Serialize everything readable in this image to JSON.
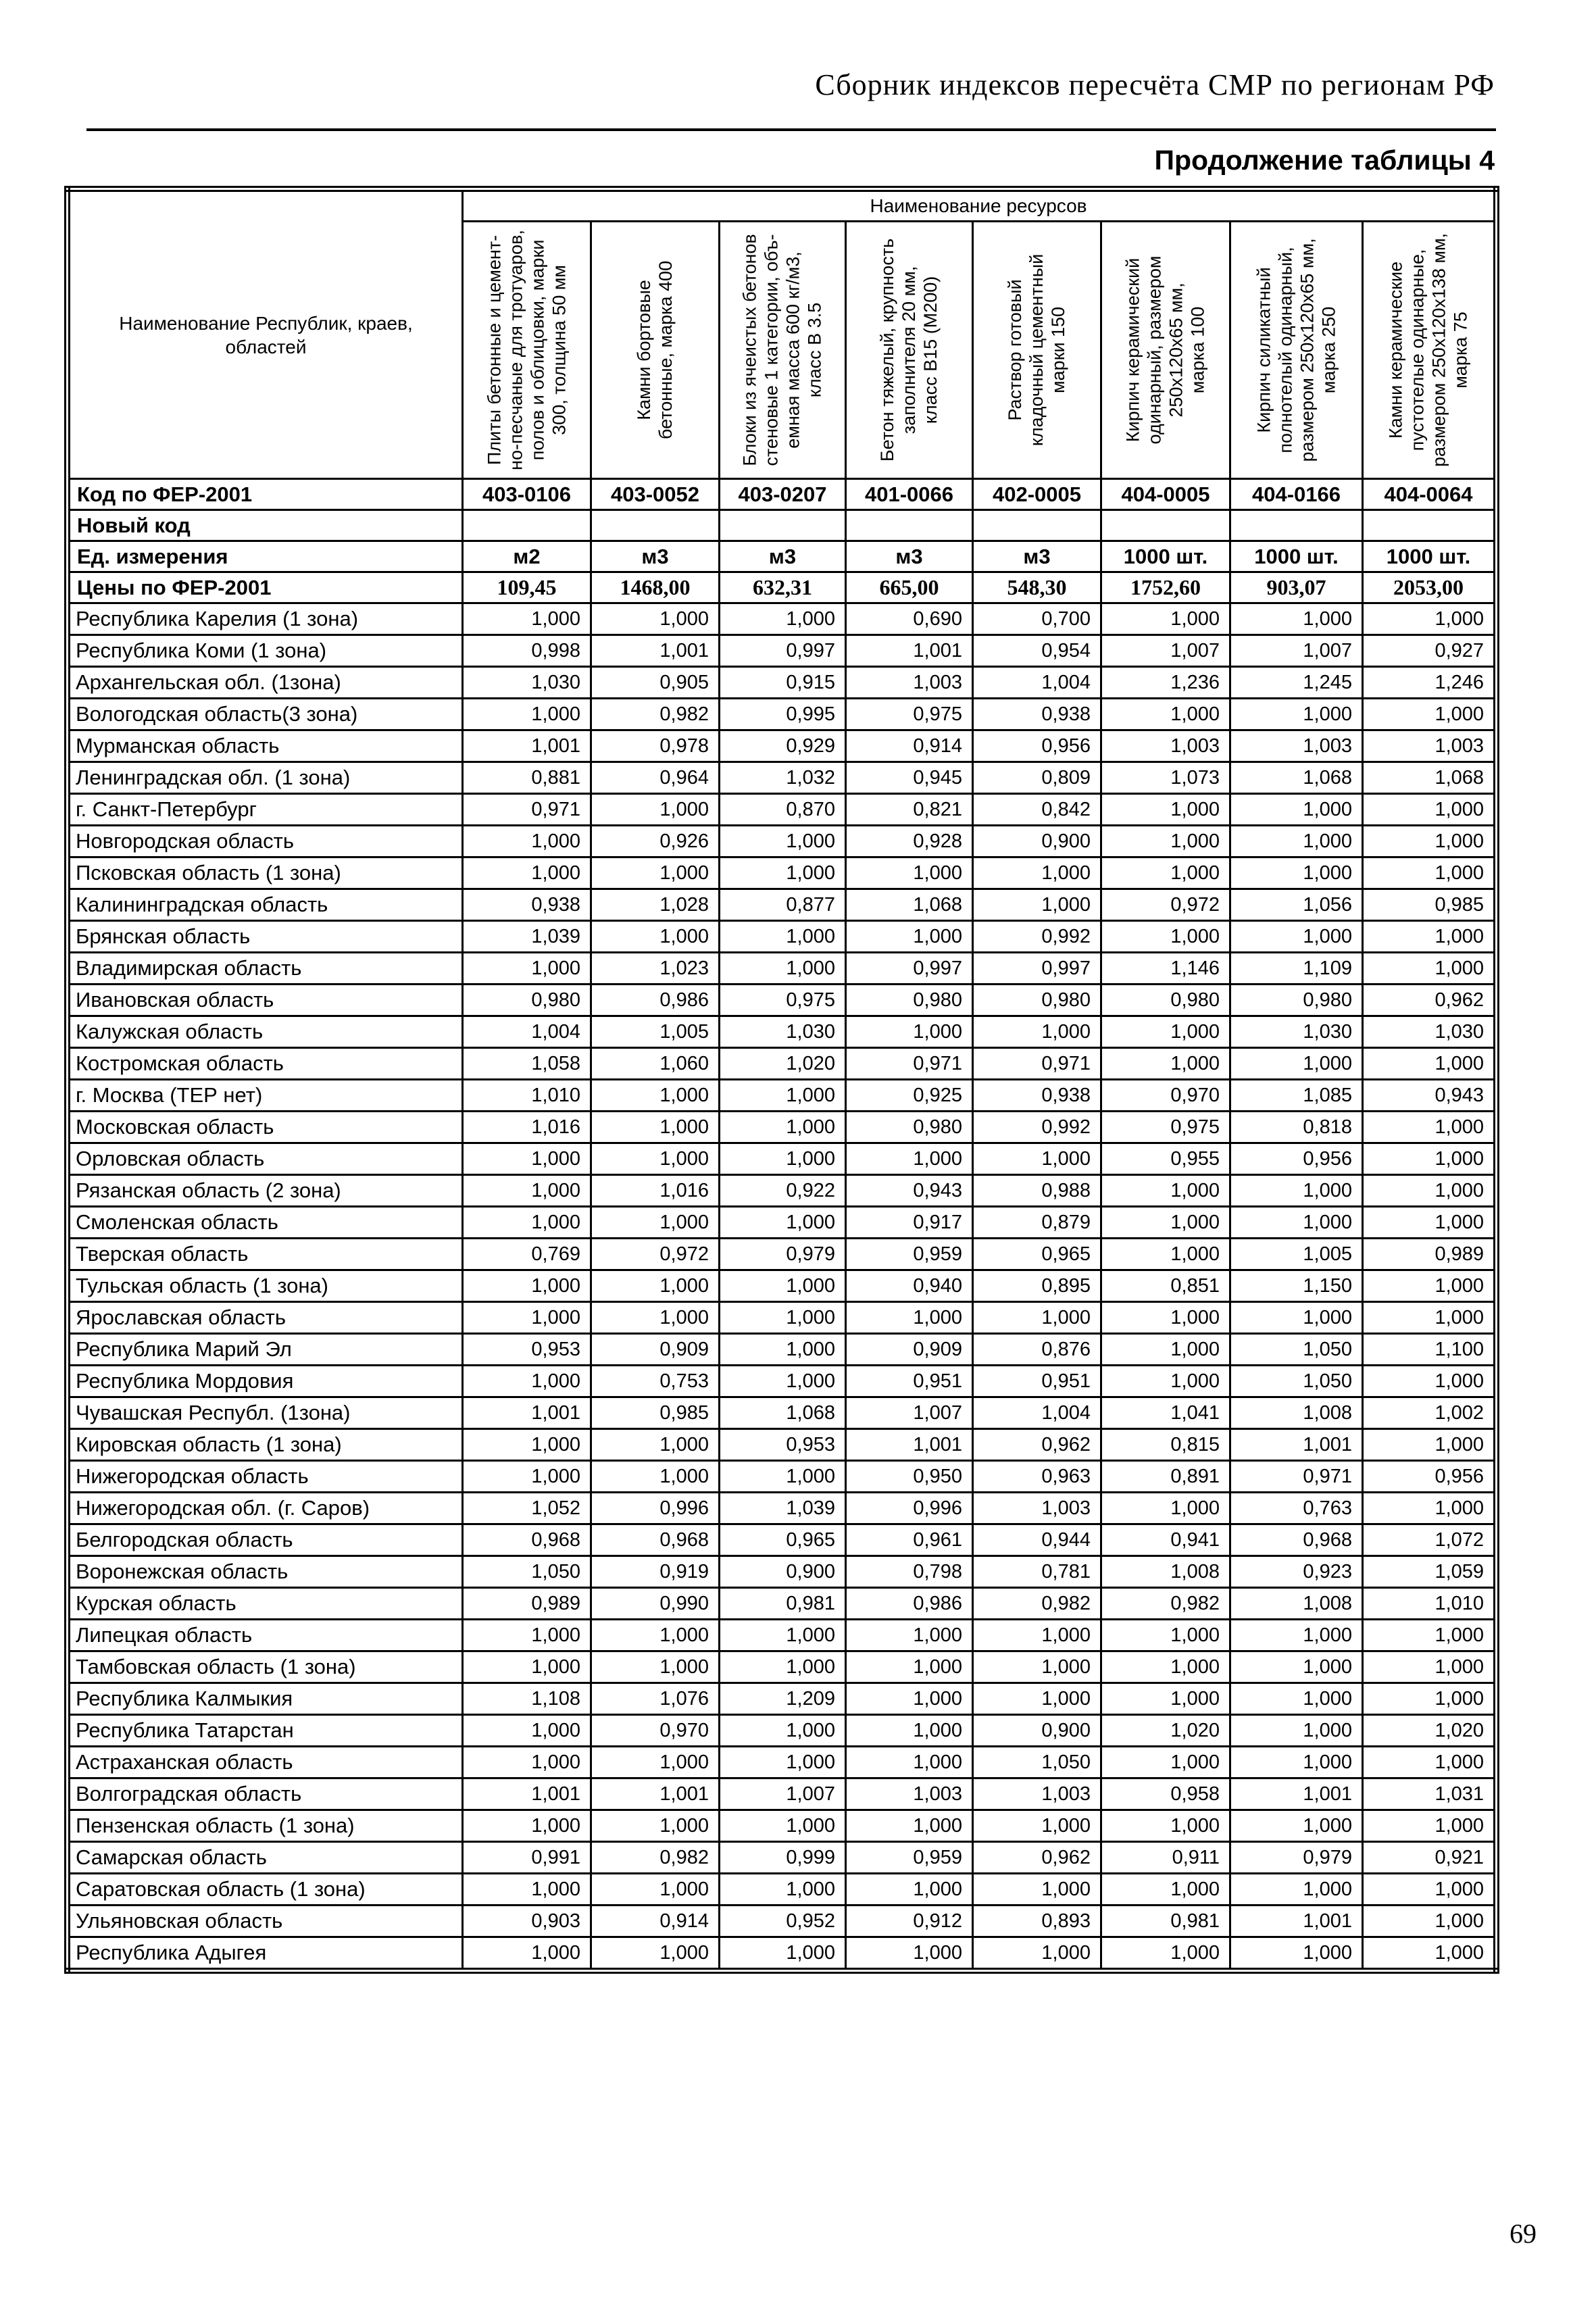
{
  "page": {
    "header_title": "Сборник индексов пересчёта СМР  по регионам РФ",
    "continuation_label": "Продолжение таблицы 4",
    "page_number": "69"
  },
  "table": {
    "corner_header": "Наименование Республик, краев,\nобластей",
    "resources_header": "Наименование ресурсов",
    "columns": [
      "Плиты бетонные и цемент-\nно-песчаные для тротуаров,\nполов и облицовки, марки\n300, толщина 50 мм",
      "Камни бортовые\nбетонные, марка 400",
      "Блоки из ячеистых бетонов\nстеновые 1 категории, объ-\nемная масса 600 кг/м3,\nкласс В 3.5",
      "Бетон тяжелый, крупность\nзаполнителя 20 мм,\nкласс В15 (М200)",
      "Раствор готовый\nкладочный цементный\nмарки 150",
      "Кирпич керамический\nодинарный, размером\n250х120х65 мм,\nмарка 100",
      "Кирпич силикатный\nполнотелый одинарный,\nразмером 250х120х65 мм,\nмарка 250",
      "Камни керамические\nпустотелые одинарные,\nразмером 250х120х138 мм,\nмарка 75"
    ],
    "meta_rows": [
      {
        "label": "Код по ФЕР-2001",
        "values": [
          "403-0106",
          "403-0052",
          "403-0207",
          "401-0066",
          "402-0005",
          "404-0005",
          "404-0166",
          "404-0064"
        ]
      },
      {
        "label": "Новый код",
        "values": [
          "",
          "",
          "",
          "",
          "",
          "",
          "",
          ""
        ]
      },
      {
        "label": "Ед. измерения",
        "values": [
          "м2",
          "м3",
          "м3",
          "м3",
          "м3",
          "1000 шт.",
          "1000 шт.",
          "1000 шт."
        ]
      },
      {
        "label": "Цены по ФЕР-2001",
        "values": [
          "109,45",
          "1468,00",
          "632,31",
          "665,00",
          "548,30",
          "1752,60",
          "903,07",
          "2053,00"
        ]
      }
    ],
    "rows": [
      {
        "name": "Республика Карелия (1 зона)",
        "values": [
          "1,000",
          "1,000",
          "1,000",
          "0,690",
          "0,700",
          "1,000",
          "1,000",
          "1,000"
        ]
      },
      {
        "name": "Республика Коми (1 зона)",
        "values": [
          "0,998",
          "1,001",
          "0,997",
          "1,001",
          "0,954",
          "1,007",
          "1,007",
          "0,927"
        ]
      },
      {
        "name": "Архангельская обл. (1зона)",
        "values": [
          "1,030",
          "0,905",
          "0,915",
          "1,003",
          "1,004",
          "1,236",
          "1,245",
          "1,246"
        ]
      },
      {
        "name": "Вологодская область(3 зона)",
        "values": [
          "1,000",
          "0,982",
          "0,995",
          "0,975",
          "0,938",
          "1,000",
          "1,000",
          "1,000"
        ]
      },
      {
        "name": "Мурманская область",
        "values": [
          "1,001",
          "0,978",
          "0,929",
          "0,914",
          "0,956",
          "1,003",
          "1,003",
          "1,003"
        ]
      },
      {
        "name": "Ленинградская обл. (1 зона)",
        "values": [
          "0,881",
          "0,964",
          "1,032",
          "0,945",
          "0,809",
          "1,073",
          "1,068",
          "1,068"
        ]
      },
      {
        "name": "г. Санкт-Петербург",
        "values": [
          "0,971",
          "1,000",
          "0,870",
          "0,821",
          "0,842",
          "1,000",
          "1,000",
          "1,000"
        ]
      },
      {
        "name": "Новгородская область",
        "values": [
          "1,000",
          "0,926",
          "1,000",
          "0,928",
          "0,900",
          "1,000",
          "1,000",
          "1,000"
        ]
      },
      {
        "name": "Псковская область (1 зона)",
        "values": [
          "1,000",
          "1,000",
          "1,000",
          "1,000",
          "1,000",
          "1,000",
          "1,000",
          "1,000"
        ]
      },
      {
        "name": "Калининградская область",
        "values": [
          "0,938",
          "1,028",
          "0,877",
          "1,068",
          "1,000",
          "0,972",
          "1,056",
          "0,985"
        ]
      },
      {
        "name": "Брянская область",
        "values": [
          "1,039",
          "1,000",
          "1,000",
          "1,000",
          "0,992",
          "1,000",
          "1,000",
          "1,000"
        ]
      },
      {
        "name": "Владимирская область",
        "values": [
          "1,000",
          "1,023",
          "1,000",
          "0,997",
          "0,997",
          "1,146",
          "1,109",
          "1,000"
        ]
      },
      {
        "name": "Ивановская область",
        "values": [
          "0,980",
          "0,986",
          "0,975",
          "0,980",
          "0,980",
          "0,980",
          "0,980",
          "0,962"
        ]
      },
      {
        "name": "Калужская область",
        "values": [
          "1,004",
          "1,005",
          "1,030",
          "1,000",
          "1,000",
          "1,000",
          "1,030",
          "1,030"
        ]
      },
      {
        "name": "Костромская область",
        "values": [
          "1,058",
          "1,060",
          "1,020",
          "0,971",
          "0,971",
          "1,000",
          "1,000",
          "1,000"
        ]
      },
      {
        "name": "г. Москва (ТЕР нет)",
        "values": [
          "1,010",
          "1,000",
          "1,000",
          "0,925",
          "0,938",
          "0,970",
          "1,085",
          "0,943"
        ]
      },
      {
        "name": "Московская  область",
        "values": [
          "1,016",
          "1,000",
          "1,000",
          "0,980",
          "0,992",
          "0,975",
          "0,818",
          "1,000"
        ]
      },
      {
        "name": "Орловская область",
        "values": [
          "1,000",
          "1,000",
          "1,000",
          "1,000",
          "1,000",
          "0,955",
          "0,956",
          "1,000"
        ]
      },
      {
        "name": "Рязанская область (2 зона)",
        "values": [
          "1,000",
          "1,016",
          "0,922",
          "0,943",
          "0,988",
          "1,000",
          "1,000",
          "1,000"
        ]
      },
      {
        "name": "Смоленская область",
        "values": [
          "1,000",
          "1,000",
          "1,000",
          "0,917",
          "0,879",
          "1,000",
          "1,000",
          "1,000"
        ]
      },
      {
        "name": "Тверская область",
        "values": [
          "0,769",
          "0,972",
          "0,979",
          "0,959",
          "0,965",
          "1,000",
          "1,005",
          "0,989"
        ]
      },
      {
        "name": "Тульская область (1 зона)",
        "values": [
          "1,000",
          "1,000",
          "1,000",
          "0,940",
          "0,895",
          "0,851",
          "1,150",
          "1,000"
        ]
      },
      {
        "name": "Ярославская область",
        "values": [
          "1,000",
          "1,000",
          "1,000",
          "1,000",
          "1,000",
          "1,000",
          "1,000",
          "1,000"
        ]
      },
      {
        "name": "Республика Марий Эл",
        "values": [
          "0,953",
          "0,909",
          "1,000",
          "0,909",
          "0,876",
          "1,000",
          "1,050",
          "1,100"
        ]
      },
      {
        "name": "Республика Мордовия",
        "values": [
          "1,000",
          "0,753",
          "1,000",
          "0,951",
          "0,951",
          "1,000",
          "1,050",
          "1,000"
        ]
      },
      {
        "name": "Чувашская Республ. (1зона)",
        "values": [
          "1,001",
          "0,985",
          "1,068",
          "1,007",
          "1,004",
          "1,041",
          "1,008",
          "1,002"
        ]
      },
      {
        "name": "Кировская область (1 зона)",
        "values": [
          "1,000",
          "1,000",
          "0,953",
          "1,001",
          "0,962",
          "0,815",
          "1,001",
          "1,000"
        ]
      },
      {
        "name": "Нижегородская область",
        "values": [
          "1,000",
          "1,000",
          "1,000",
          "0,950",
          "0,963",
          "0,891",
          "0,971",
          "0,956"
        ]
      },
      {
        "name": "Нижегородская обл. (г. Саров)",
        "values": [
          "1,052",
          "0,996",
          "1,039",
          "0,996",
          "1,003",
          "1,000",
          "0,763",
          "1,000"
        ]
      },
      {
        "name": "Белгородская область",
        "values": [
          "0,968",
          "0,968",
          "0,965",
          "0,961",
          "0,944",
          "0,941",
          "0,968",
          "1,072"
        ]
      },
      {
        "name": "Воронежская область",
        "values": [
          "1,050",
          "0,919",
          "0,900",
          "0,798",
          "0,781",
          "1,008",
          "0,923",
          "1,059"
        ]
      },
      {
        "name": "Курская область",
        "values": [
          "0,989",
          "0,990",
          "0,981",
          "0,986",
          "0,982",
          "0,982",
          "1,008",
          "1,010"
        ]
      },
      {
        "name": "Липецкая область",
        "values": [
          "1,000",
          "1,000",
          "1,000",
          "1,000",
          "1,000",
          "1,000",
          "1,000",
          "1,000"
        ]
      },
      {
        "name": "Тамбовская область (1 зона)",
        "values": [
          "1,000",
          "1,000",
          "1,000",
          "1,000",
          "1,000",
          "1,000",
          "1,000",
          "1,000"
        ]
      },
      {
        "name": "Республика Калмыкия",
        "values": [
          "1,108",
          "1,076",
          "1,209",
          "1,000",
          "1,000",
          "1,000",
          "1,000",
          "1,000"
        ]
      },
      {
        "name": "Республика Татарстан",
        "values": [
          "1,000",
          "0,970",
          "1,000",
          "1,000",
          "0,900",
          "1,020",
          "1,000",
          "1,020"
        ]
      },
      {
        "name": "Астраханская область",
        "values": [
          "1,000",
          "1,000",
          "1,000",
          "1,000",
          "1,050",
          "1,000",
          "1,000",
          "1,000"
        ]
      },
      {
        "name": "Волгоградская область",
        "values": [
          "1,001",
          "1,001",
          "1,007",
          "1,003",
          "1,003",
          "0,958",
          "1,001",
          "1,031"
        ]
      },
      {
        "name": "Пензенская область (1 зона)",
        "values": [
          "1,000",
          "1,000",
          "1,000",
          "1,000",
          "1,000",
          "1,000",
          "1,000",
          "1,000"
        ]
      },
      {
        "name": "Самарская область",
        "values": [
          "0,991",
          "0,982",
          "0,999",
          "0,959",
          "0,962",
          "0,911",
          "0,979",
          "0,921"
        ]
      },
      {
        "name": "Саратовская область (1 зона)",
        "values": [
          "1,000",
          "1,000",
          "1,000",
          "1,000",
          "1,000",
          "1,000",
          "1,000",
          "1,000"
        ]
      },
      {
        "name": "Ульяновская область",
        "values": [
          "0,903",
          "0,914",
          "0,952",
          "0,912",
          "0,893",
          "0,981",
          "1,001",
          "1,000"
        ]
      },
      {
        "name": "Республика Адыгея",
        "values": [
          "1,000",
          "1,000",
          "1,000",
          "1,000",
          "1,000",
          "1,000",
          "1,000",
          "1,000"
        ]
      }
    ]
  }
}
